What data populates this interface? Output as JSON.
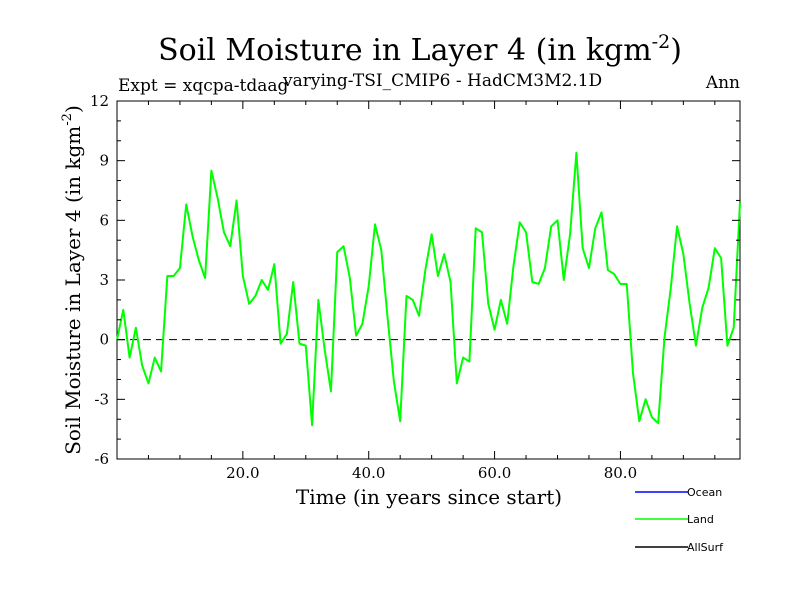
{
  "chart_data": {
    "type": "line",
    "title": "Soil Moisture in Layer 4 (in kgm",
    "title_sup": "-2",
    "title_close": ")",
    "expt_label": "Expt = xqcpa-tdaag",
    "run_label": "varying-TSI_CMIP6 - HadCM3M2.1D",
    "season_label": "Ann",
    "xlabel": "Time (in years since start)",
    "ylabel": "Soil Moisture in Layer 4 (in kgm",
    "ylabel_sup": "-2",
    "ylabel_close": ")",
    "xlim": [
      0,
      99
    ],
    "ylim": [
      -6,
      12
    ],
    "x_ticks": [
      20,
      40,
      60,
      80
    ],
    "x_tick_labels": [
      "20.0",
      "40.0",
      "60.0",
      "80.0"
    ],
    "y_ticks": [
      -6,
      -3,
      0,
      3,
      6,
      9,
      12
    ],
    "y_tick_labels": [
      "-6",
      "-3",
      "0",
      "3",
      "6",
      "9",
      "12"
    ],
    "zero_line": 0,
    "series": [
      {
        "name": "Land",
        "color": "#00ff00",
        "x": [
          0,
          1,
          2,
          3,
          4,
          5,
          6,
          7,
          8,
          9,
          10,
          11,
          12,
          13,
          14,
          15,
          16,
          17,
          18,
          19,
          20,
          21,
          22,
          23,
          24,
          25,
          26,
          27,
          28,
          29,
          30,
          31,
          32,
          33,
          34,
          35,
          36,
          37,
          38,
          39,
          40,
          41,
          42,
          43,
          44,
          45,
          46,
          47,
          48,
          49,
          50,
          51,
          52,
          53,
          54,
          55,
          56,
          57,
          58,
          59,
          60,
          61,
          62,
          63,
          64,
          65,
          66,
          67,
          68,
          69,
          70,
          71,
          72,
          73,
          74,
          75,
          76,
          77,
          78,
          79,
          80,
          81,
          82,
          83,
          84,
          85,
          86,
          87,
          88,
          89,
          90,
          91,
          92,
          93,
          94,
          95,
          96,
          97,
          98,
          99
        ],
        "values": [
          0.0,
          1.5,
          -0.9,
          0.6,
          -1.3,
          -2.2,
          -0.9,
          -1.6,
          3.2,
          3.2,
          3.6,
          6.8,
          5.2,
          4.0,
          3.1,
          8.5,
          7.1,
          5.4,
          4.7,
          7.0,
          3.2,
          1.8,
          2.2,
          3.0,
          2.5,
          3.8,
          -0.2,
          0.3,
          2.9,
          -0.2,
          -0.3,
          -4.3,
          2.0,
          -0.5,
          -2.6,
          4.4,
          4.7,
          3.1,
          0.2,
          0.8,
          2.7,
          5.8,
          4.5,
          1.1,
          -2.1,
          -4.1,
          2.2,
          2.0,
          1.2,
          3.5,
          5.3,
          3.2,
          4.3,
          2.9,
          -2.2,
          -0.9,
          -1.1,
          5.6,
          5.4,
          1.8,
          0.5,
          2.0,
          0.8,
          3.7,
          5.9,
          5.4,
          2.9,
          2.8,
          3.6,
          5.7,
          6.0,
          3.0,
          5.3,
          9.4,
          4.6,
          3.6,
          5.6,
          6.4,
          3.5,
          3.3,
          2.8,
          2.8,
          -1.7,
          -4.1,
          -3.0,
          -3.9,
          -4.2,
          0.1,
          2.6,
          5.7,
          4.3,
          1.8,
          -0.3,
          1.6,
          2.6,
          4.6,
          4.1,
          -0.3,
          0.6,
          6.9
        ]
      }
    ],
    "legend": [
      {
        "name": "Ocean",
        "color": "#0000ff"
      },
      {
        "name": "Land",
        "color": "#00ff00"
      },
      {
        "name": "AllSurf",
        "color": "#000000"
      }
    ]
  }
}
